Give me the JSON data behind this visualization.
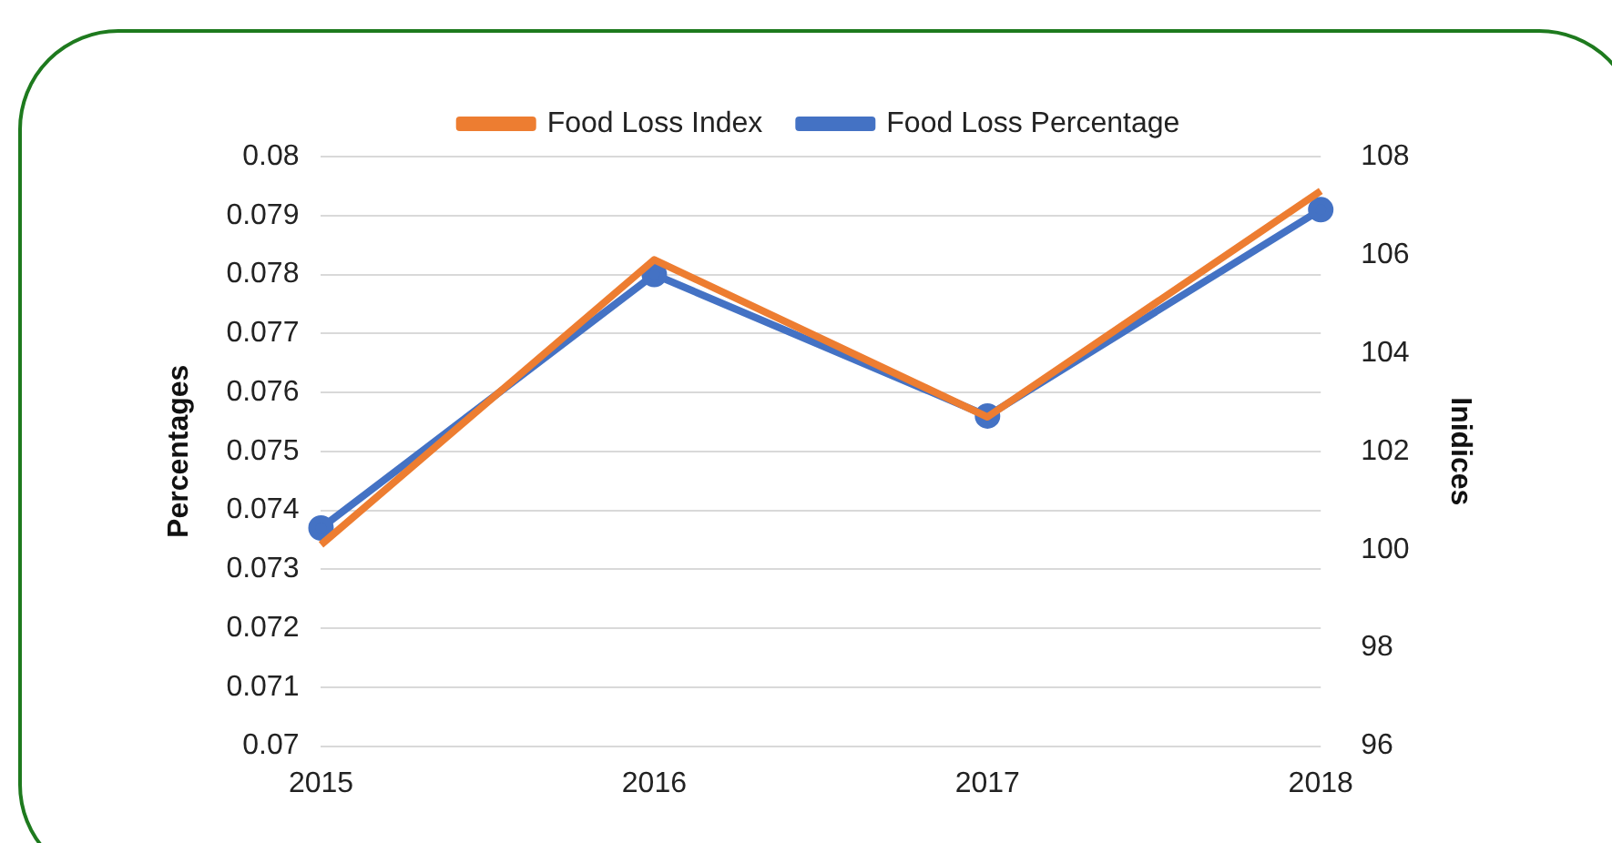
{
  "chart_data": {
    "type": "line",
    "ylabel": "Percentages",
    "y2label": "Inidices",
    "categories": [
      "2015",
      "2016",
      "2017",
      "2018"
    ],
    "series": [
      {
        "name": "Food Loss Percentage",
        "color": "#4472c4",
        "values": [
          0.0737,
          0.078,
          0.0756,
          0.0791
        ],
        "marker": "circle"
      },
      {
        "name": "Food Loss Index",
        "color": "#ed7d31",
        "values": [
          100.1,
          105.9,
          102.7,
          107.3
        ],
        "axis": "y2",
        "marker": "none"
      }
    ],
    "ylim": [
      0.07,
      0.08
    ],
    "yticks": [
      0.07,
      0.071,
      0.072,
      0.073,
      0.074,
      0.075,
      0.076,
      0.077,
      0.078,
      0.079,
      0.08
    ],
    "y2lim": [
      96,
      108
    ],
    "y2ticks": [
      96,
      98,
      100,
      102,
      104,
      106,
      108
    ],
    "grid": "y",
    "legend": "top",
    "line_style": "solid"
  }
}
